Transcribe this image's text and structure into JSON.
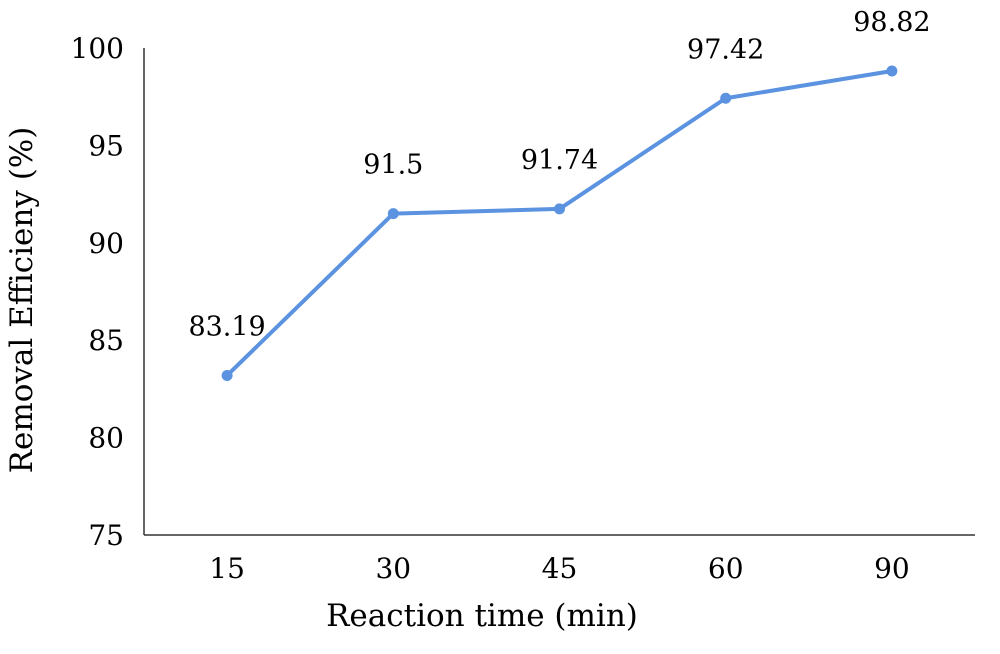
{
  "chart_data": {
    "type": "line",
    "title": "",
    "xlabel": "Reaction time (min)",
    "ylabel": "Removal Efficieny (%)",
    "categories": [
      "15",
      "30",
      "45",
      "60",
      "90"
    ],
    "series": [
      {
        "values": [
          83.19,
          91.5,
          91.74,
          97.42,
          98.82
        ],
        "data_labels": [
          "83.19",
          "91.5",
          "91.74",
          "97.42",
          "98.82"
        ],
        "color": "#5b93e0"
      }
    ],
    "ylim": [
      75,
      100
    ],
    "yticks": [
      "75",
      "80",
      "85",
      "90",
      "95",
      "100"
    ],
    "x_axis_type": "category",
    "grid": false,
    "legend": "none",
    "marker": "circle"
  }
}
